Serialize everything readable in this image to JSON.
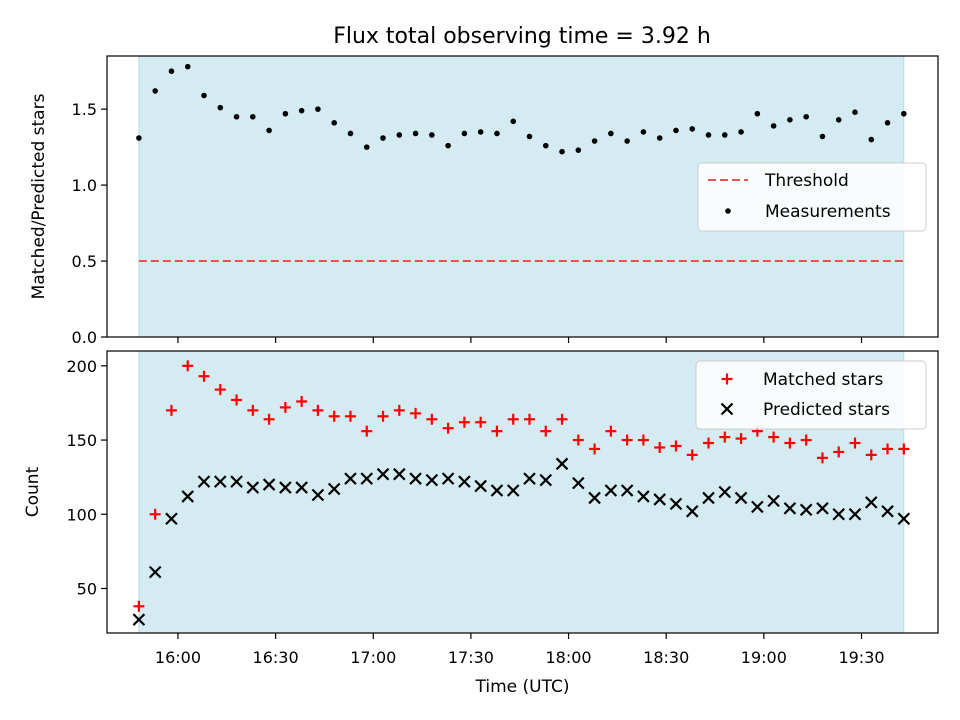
{
  "chart_data": [
    {
      "type": "scatter",
      "title": "Flux total observing time = 3.92 h",
      "ylabel": "Matched/Predicted stars",
      "ylim": [
        0,
        1.85
      ],
      "yticks": [
        0.0,
        0.5,
        1.0,
        1.5
      ],
      "ytick_labels": [
        "0.0",
        "0.5",
        "1.0",
        "1.5"
      ],
      "shaded_span": {
        "x_start": "15:48",
        "x_end": "19:43",
        "color": "#add8e6"
      },
      "legend": {
        "placement": "center-right",
        "entries": [
          "Threshold",
          "Measurements"
        ]
      },
      "threshold": {
        "name": "Threshold",
        "value": 0.5,
        "color": "#e8524f",
        "style": "dashed"
      },
      "series": [
        {
          "name": "Measurements",
          "marker": "dot",
          "color": "#000000",
          "x": [
            "15:48",
            "15:53",
            "15:58",
            "16:03",
            "16:08",
            "16:13",
            "16:18",
            "16:23",
            "16:28",
            "16:33",
            "16:38",
            "16:43",
            "16:48",
            "16:53",
            "16:58",
            "17:03",
            "17:08",
            "17:13",
            "17:18",
            "17:23",
            "17:28",
            "17:33",
            "17:38",
            "17:43",
            "17:48",
            "17:53",
            "17:58",
            "18:03",
            "18:08",
            "18:13",
            "18:18",
            "18:23",
            "18:28",
            "18:33",
            "18:38",
            "18:43",
            "18:48",
            "18:53",
            "18:58",
            "19:03",
            "19:08",
            "19:13",
            "19:18",
            "19:23",
            "19:28",
            "19:33",
            "19:38",
            "19:43"
          ],
          "values": [
            1.31,
            1.62,
            1.75,
            1.78,
            1.59,
            1.51,
            1.45,
            1.45,
            1.36,
            1.47,
            1.49,
            1.5,
            1.41,
            1.34,
            1.25,
            1.31,
            1.33,
            1.34,
            1.33,
            1.26,
            1.34,
            1.35,
            1.34,
            1.42,
            1.32,
            1.26,
            1.22,
            1.23,
            1.29,
            1.34,
            1.29,
            1.35,
            1.31,
            1.36,
            1.37,
            1.33,
            1.33,
            1.35,
            1.47,
            1.39,
            1.43,
            1.45,
            1.32,
            1.43,
            1.48,
            1.3,
            1.41,
            1.47
          ]
        }
      ]
    },
    {
      "type": "scatter",
      "xlabel": "Time (UTC)",
      "ylabel": "Count",
      "ylim": [
        20,
        210
      ],
      "yticks": [
        50,
        100,
        150,
        200
      ],
      "ytick_labels": [
        "50",
        "100",
        "150",
        "200"
      ],
      "xticks": [
        "16:00",
        "16:30",
        "17:00",
        "17:30",
        "18:00",
        "18:30",
        "19:00",
        "19:30"
      ],
      "xtick_labels": [
        "16:00",
        "16:30",
        "17:00",
        "17:30",
        "18:00",
        "18:30",
        "19:00",
        "19:30"
      ],
      "shaded_span": {
        "x_start": "15:48",
        "x_end": "19:43",
        "color": "#add8e6"
      },
      "legend": {
        "placement": "top-right",
        "entries": [
          "Matched stars",
          "Predicted stars"
        ]
      },
      "series": [
        {
          "name": "Matched stars",
          "marker": "plus",
          "color": "#ff0000",
          "x": [
            "15:48",
            "15:53",
            "15:58",
            "16:03",
            "16:08",
            "16:13",
            "16:18",
            "16:23",
            "16:28",
            "16:33",
            "16:38",
            "16:43",
            "16:48",
            "16:53",
            "16:58",
            "17:03",
            "17:08",
            "17:13",
            "17:18",
            "17:23",
            "17:28",
            "17:33",
            "17:38",
            "17:43",
            "17:48",
            "17:53",
            "17:58",
            "18:03",
            "18:08",
            "18:13",
            "18:18",
            "18:23",
            "18:28",
            "18:33",
            "18:38",
            "18:43",
            "18:48",
            "18:53",
            "18:58",
            "19:03",
            "19:08",
            "19:13",
            "19:18",
            "19:23",
            "19:28",
            "19:33",
            "19:38",
            "19:43"
          ],
          "values": [
            38,
            100,
            170,
            200,
            193,
            184,
            177,
            170,
            164,
            172,
            176,
            170,
            166,
            166,
            156,
            166,
            170,
            168,
            164,
            158,
            162,
            162,
            156,
            164,
            164,
            156,
            164,
            150,
            144,
            156,
            150,
            150,
            145,
            146,
            140,
            148,
            152,
            151,
            156,
            152,
            148,
            150,
            138,
            142,
            148,
            140,
            144,
            144
          ]
        },
        {
          "name": "Predicted stars",
          "marker": "x",
          "color": "#000000",
          "x": [
            "15:48",
            "15:53",
            "15:58",
            "16:03",
            "16:08",
            "16:13",
            "16:18",
            "16:23",
            "16:28",
            "16:33",
            "16:38",
            "16:43",
            "16:48",
            "16:53",
            "16:58",
            "17:03",
            "17:08",
            "17:13",
            "17:18",
            "17:23",
            "17:28",
            "17:33",
            "17:38",
            "17:43",
            "17:48",
            "17:53",
            "17:58",
            "18:03",
            "18:08",
            "18:13",
            "18:18",
            "18:23",
            "18:28",
            "18:33",
            "18:38",
            "18:43",
            "18:48",
            "18:53",
            "18:58",
            "19:03",
            "19:08",
            "19:13",
            "19:18",
            "19:23",
            "19:28",
            "19:33",
            "19:38",
            "19:43"
          ],
          "values": [
            29,
            61,
            97,
            112,
            122,
            122,
            122,
            118,
            120,
            118,
            118,
            113,
            117,
            124,
            124,
            127,
            127,
            124,
            123,
            124,
            122,
            119,
            116,
            116,
            124,
            123,
            134,
            121,
            111,
            116,
            116,
            112,
            110,
            107,
            102,
            111,
            115,
            111,
            105,
            109,
            104,
            103,
            104,
            100,
            100,
            108,
            102,
            97
          ]
        }
      ]
    }
  ]
}
